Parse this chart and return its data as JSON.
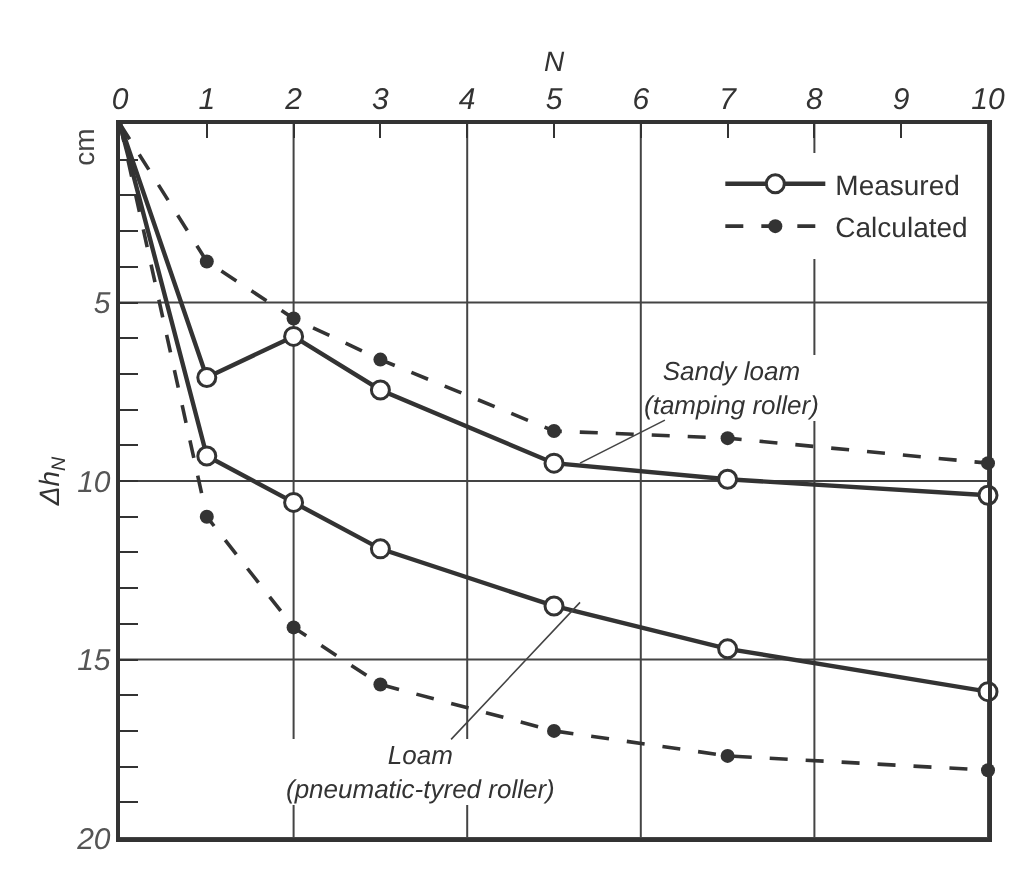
{
  "chart_data": {
    "type": "line",
    "xlabel": "N",
    "ylabel": "Δh$_{N}$",
    "x": [
      0,
      1,
      2,
      3,
      5,
      7,
      10
    ],
    "series": [
      {
        "name": "Measured",
        "color": "#333333",
        "line_style": "solid",
        "marker": "circle",
        "values": [
          0,
          7.1,
          5.95,
          7.45,
          9.5,
          9.95,
          10.4
        ]
      },
      {
        "name": "Calculated",
        "color": "#333333",
        "line_style": "dashed",
        "marker": "circle",
        "values": [
          0,
          3.85,
          5.45,
          6.6,
          8.6,
          8.8,
          9.5
        ]
      },
      {
        "color": "#333333",
        "line_style": "solid",
        "marker": "circle",
        "values": [
          0,
          9.3,
          10.6,
          11.9,
          13.5,
          14.7,
          15.9
        ]
      },
      {
        "color": "#333333",
        "line_style": "dashed",
        "marker": "circle",
        "values": [
          0,
          11.0,
          14.1,
          15.7,
          17.0,
          17.7,
          18.1
        ]
      }
    ],
    "xlim": [
      0,
      10
    ],
    "xticks": [
      0,
      1,
      2,
      3,
      4,
      5,
      6,
      7,
      8,
      9,
      10
    ],
    "ylim": [
      20,
      0
    ],
    "yticks": [
      {
        "value": 1,
        "label": null
      },
      {
        "value": 2,
        "label": null
      },
      {
        "value": 3,
        "label": null
      },
      {
        "value": 4,
        "label": null
      },
      5,
      {
        "value": 6,
        "label": null
      },
      {
        "value": 7,
        "label": null
      },
      {
        "value": 8,
        "label": null
      },
      {
        "value": 9,
        "label": null
      },
      10,
      {
        "value": 11,
        "label": null
      },
      {
        "value": 12,
        "label": null
      },
      {
        "value": 13,
        "label": null
      },
      {
        "value": 14,
        "label": null
      },
      15,
      {
        "value": 16,
        "label": null
      },
      {
        "value": 17,
        "label": null
      },
      {
        "value": 18,
        "label": null
      },
      {
        "value": 19,
        "label": null
      },
      20
    ],
    "grid": true,
    "legend": "top right",
    "annotations": [
      "cm",
      {
        "text": "Sandy loam\n(tamping roller)",
        "x": 5.3,
        "y": 9.5
      },
      {
        "text": "Loam\n(pneumatic-tyred roller)",
        "x": 5.3,
        "y": 13.4
      }
    ]
  }
}
